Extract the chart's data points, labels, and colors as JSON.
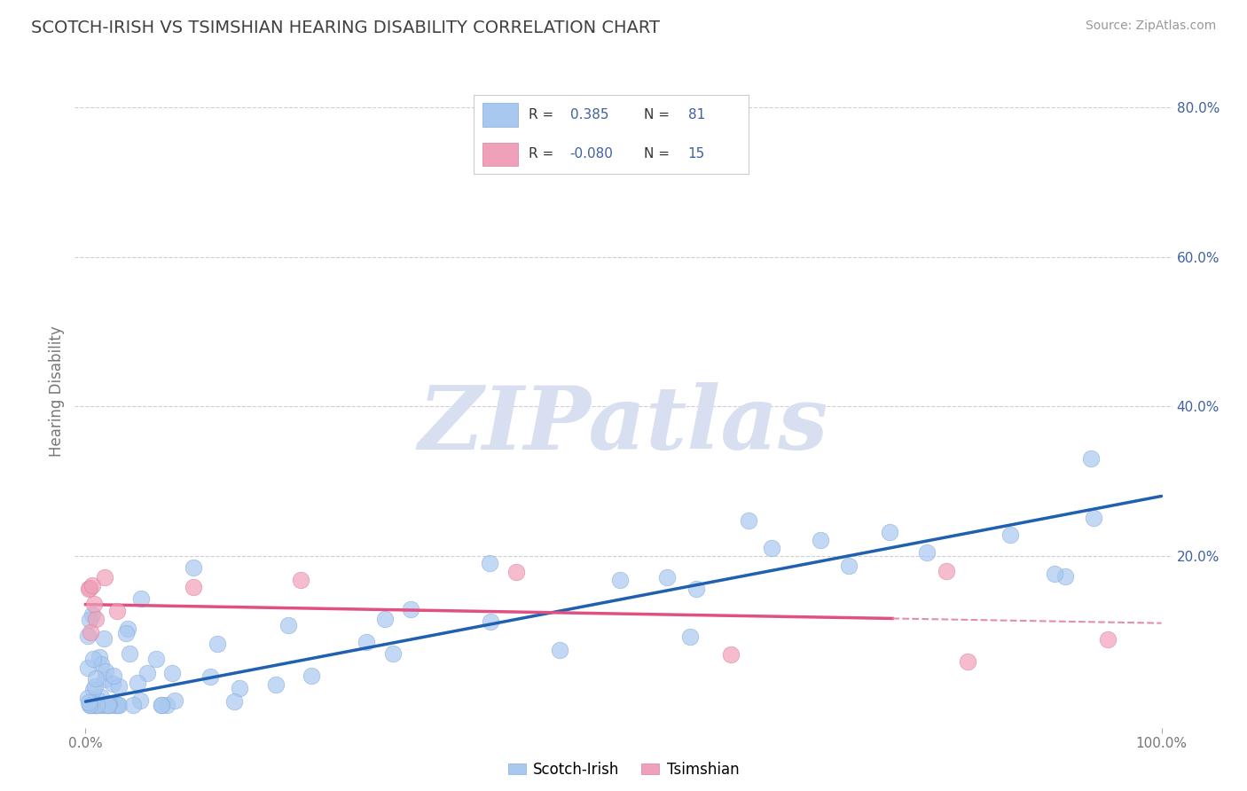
{
  "title": "SCOTCH-IRISH VS TSIMSHIAN HEARING DISABILITY CORRELATION CHART",
  "source": "Source: ZipAtlas.com",
  "ylabel": "Hearing Disability",
  "legend_label1": "Scotch-Irish",
  "legend_label2": "Tsimshian",
  "R1": 0.385,
  "N1": 81,
  "R2": -0.08,
  "N2": 15,
  "scotch_color": "#a8c8f0",
  "tsimshian_color": "#f0a0b8",
  "scotch_line_color": "#2060b0",
  "tsimshian_line_color": "#e05080",
  "tsimshian_dash_color": "#e090a8",
  "bg_color": "#ffffff",
  "grid_color": "#c8c8d8",
  "title_color": "#404040",
  "watermark_color": "#d8dff0",
  "legend_text_color": "#4060a0",
  "xlim": [
    0,
    100
  ],
  "ylim_bottom": -3,
  "ylim_top": 87,
  "y_ticks_right": [
    20.0,
    40.0,
    60.0,
    80.0
  ],
  "y_ticks_right_labels": [
    "20.0%",
    "40.0%",
    "60.0%",
    "80.0%"
  ],
  "si_trend_x0": 0,
  "si_trend_y0": 0.5,
  "si_trend_x1": 100,
  "si_trend_y1": 28.0,
  "ts_trend_x0": 0,
  "ts_trend_y0": 13.5,
  "ts_trend_x1": 100,
  "ts_trend_y1": 11.0,
  "ts_dash_x0": 75,
  "ts_dash_x1": 100
}
